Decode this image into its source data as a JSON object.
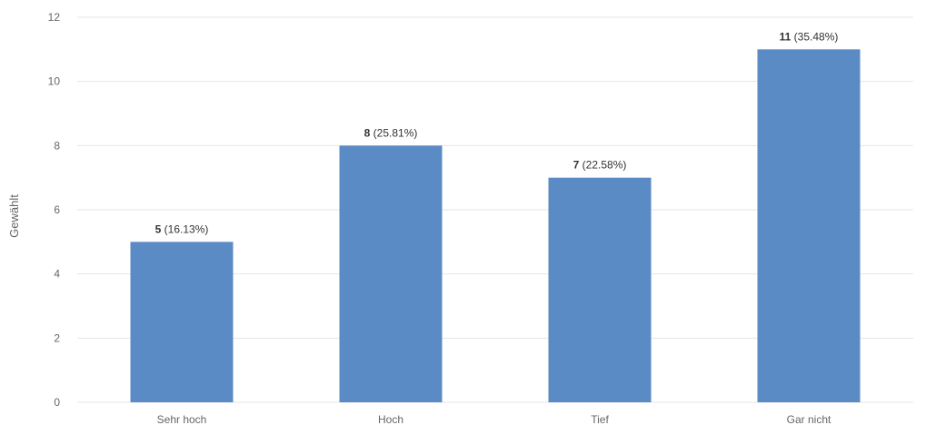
{
  "chart_data": {
    "type": "bar",
    "categories": [
      "Sehr hoch",
      "Hoch",
      "Tief",
      "Gar nicht"
    ],
    "values": [
      5,
      8,
      7,
      11
    ],
    "percent_labels": [
      "(16.13%)",
      "(25.81%)",
      "(22.58%)",
      "(35.48%)"
    ],
    "ylabel": "Gewählt",
    "xlabel": "",
    "ylim": [
      0,
      12
    ],
    "yticks": [
      0,
      2,
      4,
      6,
      8,
      10,
      12
    ],
    "grid": true,
    "bar_color": "#5a8bc4",
    "grid_color": "#e6e6e6",
    "text_color": "#333333",
    "tick_color": "#666666"
  }
}
